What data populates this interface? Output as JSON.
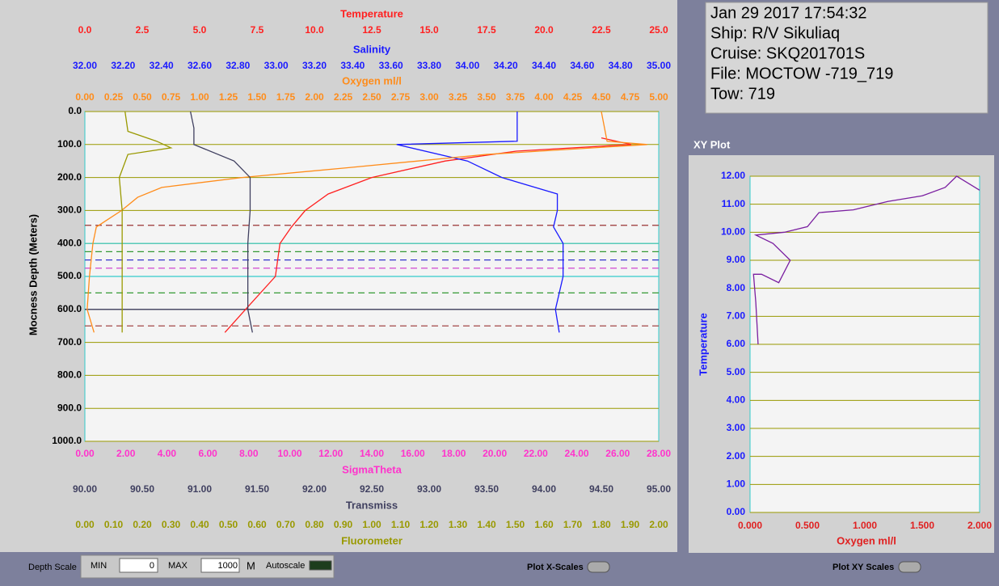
{
  "info": {
    "lines": [
      "Jan 29 2017 17:54:32",
      "Ship: R/V Sikuliaq",
      "Cruise: SKQ201701S",
      "File: MOCTOW -719_719",
      "Tow: 719"
    ]
  },
  "chart_data": [
    {
      "type": "line",
      "ylabel": "Mocness Depth (Meters)",
      "ylim": [
        0,
        1000
      ],
      "inverted": true,
      "grid": true,
      "grid_color": "#999900",
      "yticks": [
        {
          "value": 0,
          "label": "0.0"
        },
        {
          "value": 100,
          "label": "100.0"
        },
        {
          "value": 200,
          "label": "200.0"
        },
        {
          "value": 300,
          "label": "300.0"
        },
        {
          "value": 400,
          "label": "400.0"
        },
        {
          "value": 500,
          "label": "500.0"
        },
        {
          "value": 600,
          "label": "600.0"
        },
        {
          "value": 700,
          "label": "700.0"
        },
        {
          "value": 800,
          "label": "800.0"
        },
        {
          "value": 900,
          "label": "900.0"
        },
        {
          "value": 1000,
          "label": "1000.0"
        }
      ],
      "x_axes": [
        {
          "title": "Temperature",
          "color": "#ff2020",
          "xlim": [
            0,
            25
          ],
          "xticks": [
            {
              "value": 0,
              "label": "0.0"
            },
            2.5,
            {
              "value": 5,
              "label": "5.0"
            },
            7.5,
            {
              "value": 10,
              "label": "10.0"
            },
            12.5,
            {
              "value": 15,
              "label": "15.0"
            },
            17.5,
            {
              "value": 20,
              "label": "20.0"
            },
            22.5,
            {
              "value": 25,
              "label": "25.0"
            }
          ]
        },
        {
          "title": "Salinity",
          "color": "#1a1aff",
          "xlim": [
            32,
            35
          ],
          "xticks": [
            {
              "value": 32,
              "label": "32.00"
            },
            {
              "value": 32.2,
              "label": "32.20"
            },
            {
              "value": 32.4,
              "label": "32.40"
            },
            {
              "value": 32.6,
              "label": "32.60"
            },
            {
              "value": 32.8,
              "label": "32.80"
            },
            {
              "value": 33,
              "label": "33.00"
            },
            {
              "value": 33.2,
              "label": "33.20"
            },
            {
              "value": 33.4,
              "label": "33.40"
            },
            {
              "value": 33.6,
              "label": "33.60"
            },
            {
              "value": 33.8,
              "label": "33.80"
            },
            {
              "value": 34,
              "label": "34.00"
            },
            {
              "value": 34.2,
              "label": "34.20"
            },
            {
              "value": 34.4,
              "label": "34.40"
            },
            {
              "value": 34.6,
              "label": "34.60"
            },
            {
              "value": 34.8,
              "label": "34.80"
            },
            {
              "value": 35,
              "label": "35.00"
            }
          ]
        },
        {
          "title": "Oxygen ml/l",
          "color": "#ff8c1a",
          "xlim": [
            0,
            5
          ],
          "xticks": [
            {
              "value": 0,
              "label": "0.00"
            },
            0.25,
            {
              "value": 0.5,
              "label": "0.50"
            },
            0.75,
            {
              "value": 1,
              "label": "1.00"
            },
            1.25,
            {
              "value": 1.5,
              "label": "1.50"
            },
            1.75,
            {
              "value": 2,
              "label": "2.00"
            },
            2.25,
            {
              "value": 2.5,
              "label": "2.50"
            },
            2.75,
            {
              "value": 3,
              "label": "3.00"
            },
            3.25,
            {
              "value": 3.5,
              "label": "3.50"
            },
            3.75,
            {
              "value": 4,
              "label": "4.00"
            },
            4.25,
            {
              "value": 4.5,
              "label": "4.50"
            },
            4.75,
            {
              "value": 5,
              "label": "5.00"
            }
          ]
        },
        {
          "title": "SigmaTheta",
          "color": "#ff33cc",
          "xlim": [
            0,
            28
          ],
          "xticks": [
            {
              "value": 0,
              "label": "0.00"
            },
            {
              "value": 2,
              "label": "2.00"
            },
            {
              "value": 4,
              "label": "4.00"
            },
            {
              "value": 6,
              "label": "6.00"
            },
            {
              "value": 8,
              "label": "8.00"
            },
            {
              "value": 10,
              "label": "10.00"
            },
            {
              "value": 12,
              "label": "12.00"
            },
            {
              "value": 14,
              "label": "14.00"
            },
            {
              "value": 16,
              "label": "16.00"
            },
            {
              "value": 18,
              "label": "18.00"
            },
            {
              "value": 20,
              "label": "20.00"
            },
            {
              "value": 22,
              "label": "22.00"
            },
            {
              "value": 24,
              "label": "24.00"
            },
            {
              "value": 26,
              "label": "26.00"
            },
            {
              "value": 28,
              "label": "28.00"
            }
          ]
        },
        {
          "title": "Transmiss",
          "color": "#404060",
          "xlim": [
            90,
            95
          ],
          "xticks": [
            {
              "value": 90,
              "label": "90.00"
            },
            {
              "value": 90.5,
              "label": "90.50"
            },
            {
              "value": 91,
              "label": "91.00"
            },
            {
              "value": 91.5,
              "label": "91.50"
            },
            {
              "value": 92,
              "label": "92.00"
            },
            {
              "value": 92.5,
              "label": "92.50"
            },
            {
              "value": 93,
              "label": "93.00"
            },
            {
              "value": 93.5,
              "label": "93.50"
            },
            {
              "value": 94,
              "label": "94.00"
            },
            {
              "value": 94.5,
              "label": "94.50"
            },
            {
              "value": 95,
              "label": "95.00"
            }
          ]
        },
        {
          "title": "Fluorometer",
          "color": "#999900",
          "xlim": [
            0,
            2
          ],
          "xticks": [
            {
              "value": 0,
              "label": "0.00"
            },
            {
              "value": 0.1,
              "label": "0.10"
            },
            {
              "value": 0.2,
              "label": "0.20"
            },
            {
              "value": 0.3,
              "label": "0.30"
            },
            {
              "value": 0.4,
              "label": "0.40"
            },
            {
              "value": 0.5,
              "label": "0.50"
            },
            {
              "value": 0.6,
              "label": "0.60"
            },
            {
              "value": 0.7,
              "label": "0.70"
            },
            {
              "value": 0.8,
              "label": "0.80"
            },
            {
              "value": 0.9,
              "label": "0.90"
            },
            {
              "value": 1,
              "label": "1.00"
            },
            {
              "value": 1.1,
              "label": "1.10"
            },
            {
              "value": 1.2,
              "label": "1.20"
            },
            {
              "value": 1.3,
              "label": "1.30"
            },
            {
              "value": 1.4,
              "label": "1.40"
            },
            {
              "value": 1.5,
              "label": "1.50"
            },
            {
              "value": 1.6,
              "label": "1.60"
            },
            {
              "value": 1.7,
              "label": "1.70"
            },
            {
              "value": 1.8,
              "label": "1.80"
            },
            {
              "value": 1.9,
              "label": "1.90"
            },
            {
              "value": 2,
              "label": "2.00"
            }
          ]
        }
      ],
      "series": [
        {
          "axis": 0,
          "values": [
            22.5,
            23.8,
            18.8,
            15.7,
            12.5,
            10.6,
            9.6,
            9.0,
            8.5,
            8.3,
            7.0,
            6.1
          ],
          "depth": [
            80,
            100,
            120,
            150,
            200,
            250,
            300,
            350,
            400,
            500,
            600,
            670
          ]
        },
        {
          "axis": 1,
          "values": [
            34.26,
            34.26,
            33.63,
            34.0,
            34.18,
            34.47,
            34.47,
            34.45,
            34.5,
            34.5,
            34.46,
            34.48
          ],
          "depth": [
            0,
            90,
            100,
            150,
            200,
            250,
            300,
            350,
            400,
            500,
            600,
            670
          ]
        },
        {
          "axis": 2,
          "values": [
            4.5,
            4.55,
            4.9,
            3.5,
            2.3,
            1.37,
            0.67,
            0.46,
            0.32,
            0.1,
            0.07,
            0.04,
            0.02,
            0.08
          ],
          "depth": [
            0,
            90,
            100,
            130,
            170,
            200,
            230,
            260,
            300,
            350,
            400,
            500,
            600,
            670
          ]
        },
        {
          "axis": 4,
          "values": [
            90.92,
            90.95,
            90.95,
            91.3,
            91.44,
            91.44,
            91.42,
            91.42,
            91.42,
            91.46
          ],
          "depth": [
            0,
            50,
            100,
            150,
            200,
            300,
            400,
            500,
            600,
            670
          ]
        },
        {
          "axis": 5,
          "values": [
            0.14,
            0.15,
            0.25,
            0.3,
            0.15,
            0.12,
            0.13,
            0.13,
            0.13
          ],
          "depth": [
            0,
            60,
            90,
            110,
            130,
            200,
            300,
            400,
            670
          ]
        }
      ],
      "depth_markers": [
        {
          "depth": 345,
          "color": "#993333",
          "dashed": true
        },
        {
          "depth": 400,
          "color": "#33cccc",
          "dashed": false
        },
        {
          "depth": 425,
          "color": "#339933",
          "dashed": true
        },
        {
          "depth": 450,
          "color": "#3333cc",
          "dashed": true
        },
        {
          "depth": 475,
          "color": "#cc33cc",
          "dashed": true
        },
        {
          "depth": 500,
          "color": "#33cccc",
          "dashed": false
        },
        {
          "depth": 550,
          "color": "#339933",
          "dashed": true
        },
        {
          "depth": 600,
          "color": "#202060",
          "dashed": false
        },
        {
          "depth": 650,
          "color": "#993333",
          "dashed": true
        }
      ]
    },
    {
      "type": "line",
      "title": "XY Plot",
      "xlabel": "Oxygen ml/l",
      "ylabel": "Temperature",
      "xlim": [
        0,
        2
      ],
      "ylim": [
        0,
        12
      ],
      "grid": true,
      "grid_color": "#999900",
      "xticks": [
        {
          "value": 0,
          "label": "0.000"
        },
        {
          "value": 0.5,
          "label": "0.500"
        },
        {
          "value": 1,
          "label": "1.000"
        },
        {
          "value": 1.5,
          "label": "1.500"
        },
        {
          "value": 2,
          "label": "2.000"
        }
      ],
      "yticks": [
        {
          "value": 0,
          "label": "0.00"
        },
        {
          "value": 1,
          "label": "1.00"
        },
        {
          "value": 2,
          "label": "2.00"
        },
        {
          "value": 3,
          "label": "3.00"
        },
        {
          "value": 4,
          "label": "4.00"
        },
        {
          "value": 5,
          "label": "5.00"
        },
        {
          "value": 6,
          "label": "6.00"
        },
        {
          "value": 7,
          "label": "7.00"
        },
        {
          "value": 8,
          "label": "8.00"
        },
        {
          "value": 9,
          "label": "9.00"
        },
        {
          "value": 10,
          "label": "10.00"
        },
        {
          "value": 11,
          "label": "11.00"
        },
        {
          "value": 12,
          "label": "12.00"
        }
      ],
      "series": [
        {
          "color": "#7a1fa0",
          "x": [
            0.07,
            0.05,
            0.03,
            0.1,
            0.25,
            0.35,
            0.2,
            0.05,
            0.3,
            0.5,
            0.6,
            0.9,
            1.2,
            1.5,
            1.7,
            1.8,
            2.0
          ],
          "values": [
            6.0,
            7.5,
            8.5,
            8.5,
            8.2,
            9.0,
            9.6,
            9.9,
            10.0,
            10.2,
            10.7,
            10.8,
            11.1,
            11.3,
            11.6,
            12.0,
            11.5
          ]
        }
      ]
    }
  ],
  "controls": {
    "depth_scale": "Depth Scale",
    "min_label": "MIN",
    "min_value": "0",
    "max_label": "MAX",
    "max_value": "1000",
    "unit": "M",
    "autoscale": "Autoscale",
    "plot_x_scales": "Plot X-Scales",
    "plot_xy_scales": "Plot XY Scales"
  }
}
